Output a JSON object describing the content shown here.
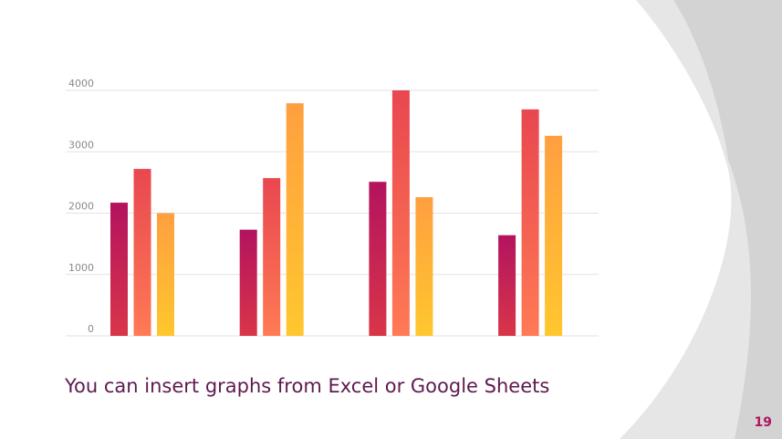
{
  "slide": {
    "caption": "You can insert graphs from Excel or Google Sheets",
    "page_number": "19"
  },
  "colors": {
    "background": "#ffffff",
    "decor_light": "#e6e6e6",
    "decor_mid": "#d3d3d3",
    "gridline": "#e2e2e2",
    "tick_text": "#8a8a8a",
    "caption_text": "#5e1a4e",
    "page_number": "#b3135f",
    "series_gradients": [
      [
        "#b3135f",
        "#d93549"
      ],
      [
        "#e8474f",
        "#ff7a55"
      ],
      [
        "#ff9f40",
        "#ffc72e"
      ]
    ]
  },
  "chart_data": {
    "type": "bar",
    "title": "",
    "xlabel": "",
    "ylabel": "",
    "categories": [
      "",
      "",
      "",
      ""
    ],
    "ylim": [
      0,
      4000
    ],
    "yticks": [
      0,
      1000,
      2000,
      3000,
      4000
    ],
    "grid": true,
    "legend": "none",
    "series": [
      {
        "values": [
          2170,
          1730,
          2510,
          1640
        ]
      },
      {
        "values": [
          2720,
          2570,
          4000,
          3690
        ]
      },
      {
        "values": [
          2000,
          3790,
          2260,
          3260
        ]
      }
    ]
  }
}
